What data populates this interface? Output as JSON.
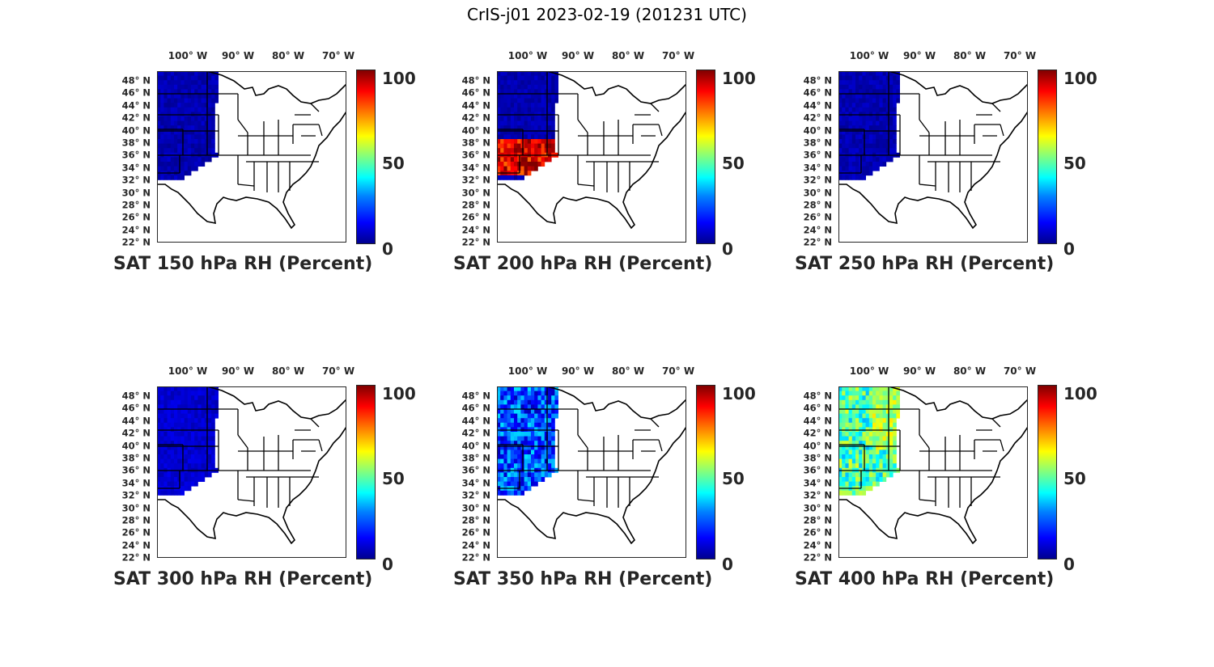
{
  "title": "CrIS-j01 2023-02-19 (201231 UTC)",
  "lon_ticks": [
    "100° W",
    "90° W",
    "80° W",
    "70° W"
  ],
  "lat_ticks": [
    "48° N",
    "46° N",
    "44° N",
    "42° N",
    "40° N",
    "38° N",
    "36° N",
    "34° N",
    "32° N",
    "30° N",
    "28° N",
    "26° N",
    "24° N",
    "22° N"
  ],
  "colorbar": {
    "ticks": [
      "100",
      "50",
      "0"
    ],
    "range": [
      0,
      100
    ],
    "colormap": "jet"
  },
  "panels": [
    {
      "label": "SAT 150 hPa RH (Percent)",
      "coverage": "northern-plains",
      "dominant_rh": 5
    },
    {
      "label": "SAT 200 hPa RH (Percent)",
      "coverage": "northern-plains",
      "dominant_rh": 5,
      "band_rh": 90
    },
    {
      "label": "SAT 250 hPa RH (Percent)",
      "coverage": "northern-plains",
      "dominant_rh": 5
    },
    {
      "label": "SAT 300 hPa RH (Percent)",
      "coverage": "northern-plains",
      "dominant_rh": 8
    },
    {
      "label": "SAT 350 hPa RH (Percent)",
      "coverage": "northern-plains",
      "dominant_rh": 20
    },
    {
      "label": "SAT 400 hPa RH (Percent)",
      "coverage": "northern-plains",
      "dominant_rh": 45
    }
  ]
}
